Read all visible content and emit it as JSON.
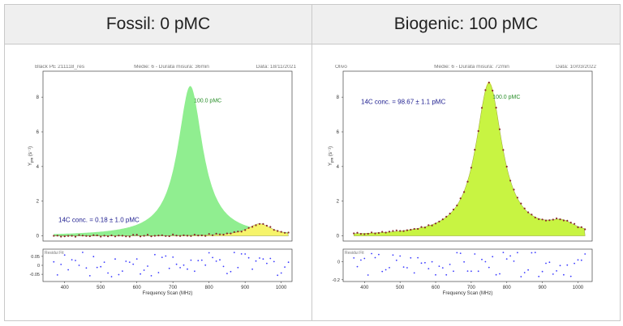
{
  "headers": {
    "left": "Fossil: 0 pMC",
    "right": "Biogenic: 100 pMC"
  },
  "chart_data": [
    {
      "type": "area",
      "panel": "left",
      "meta": {
        "left": "Black PE 211118_res",
        "center": "Medie: 6 - Durata misura: 36min",
        "right": "Data: 18/11/2021"
      },
      "peak_label": "100.0 pMC",
      "annotation": "14C conc. = 0.18 ± 1.0 pMC",
      "ylabel": "Y",
      "ylabel_sub": "pm",
      "ylabel_unit": "(s⁻¹)",
      "yticks": [
        0,
        2,
        4,
        6,
        8
      ],
      "ylim": [
        -0.3,
        9.5
      ],
      "xlim": [
        340,
        1030
      ],
      "xticks": [
        400,
        500,
        600,
        700,
        800,
        900,
        1000
      ],
      "xlabel": "Frequency Scan (MHz)",
      "residual_label": "Residui Fit",
      "residual_yticks": [
        0.05,
        0.0,
        -0.05
      ],
      "residual_ylim": [
        -0.09,
        0.09
      ],
      "reference_curve": {
        "amplitude": 8.65,
        "center": 748,
        "width": 42
      },
      "fit_curve": {
        "amplitude": 0.7,
        "center": 940,
        "width": 42
      },
      "residuals_seed": 7
    },
    {
      "type": "area",
      "panel": "right",
      "meta": {
        "left": "Olivo",
        "center": "Medie: 6 - Durata misura: 72min",
        "right": "Data: 10/03/2022"
      },
      "peak_label": "100.0 pMC",
      "annotation": "14C conc. = 98.67 ± 1.1 pMC",
      "ylabel": "Y",
      "ylabel_sub": "pm",
      "ylabel_unit": "(s⁻¹)",
      "yticks": [
        0,
        2,
        4,
        6,
        8
      ],
      "ylim": [
        -0.3,
        9.5
      ],
      "xlim": [
        340,
        1040
      ],
      "xticks": [
        400,
        500,
        600,
        700,
        800,
        900,
        1000
      ],
      "xlabel": "Frequency Scan (MHz)",
      "residual_label": "Residui Fit",
      "residual_yticks": [
        0.0,
        -0.2
      ],
      "residual_ylim": [
        -0.22,
        0.14
      ],
      "reference_curve": {
        "amplitude": 8.9,
        "center": 750,
        "width": 45
      },
      "fit_curve": {
        "amplitude": 8.78,
        "center": 750,
        "width": 45
      },
      "bump": {
        "amplitude": 0.55,
        "center": 955,
        "width": 45
      },
      "residuals_seed": 11
    }
  ],
  "colors": {
    "fossil_fill": "#90ee90",
    "biogenic_fill": "#c8f442",
    "tail_fill": "#f6f46a",
    "points": "#8b2b2b",
    "residual_points": "#3a3aff",
    "annotation": "#1d1d8f",
    "peak_label": "#2a8f2a"
  }
}
